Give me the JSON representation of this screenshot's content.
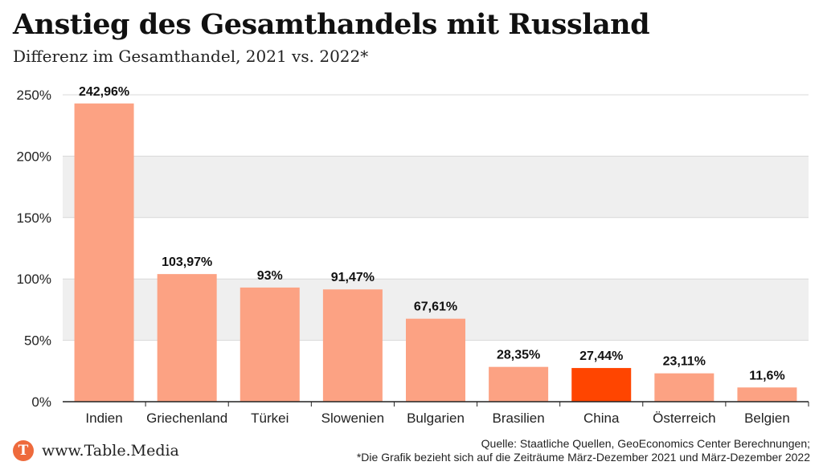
{
  "header": {
    "title": "Anstieg des Gesamthandels mit Russland",
    "subtitle": "Differenz im Gesamthandel, 2021 vs. 2022*"
  },
  "chart_data": {
    "type": "bar",
    "title": "Anstieg des Gesamthandels mit Russland",
    "subtitle": "Differenz im Gesamthandel, 2021 vs. 2022*",
    "xlabel": "",
    "ylabel": "",
    "ylim": [
      0,
      250
    ],
    "yticks": [
      0,
      50,
      100,
      150,
      200,
      250
    ],
    "ytick_labels": [
      "0%",
      "50%",
      "100%",
      "150%",
      "200%",
      "250%"
    ],
    "grid": "alternating horizontal bands",
    "legend": "none",
    "categories": [
      "Indien",
      "Griechenland",
      "Türkei",
      "Slowenien",
      "Bulgarien",
      "Brasilien",
      "China",
      "Österreich",
      "Belgien"
    ],
    "values": [
      242.96,
      103.97,
      93,
      91.47,
      67.61,
      28.35,
      27.44,
      23.11,
      11.6
    ],
    "value_labels": [
      "242,96%",
      "103,97%",
      "93%",
      "91,47%",
      "67,61%",
      "28,35%",
      "27,44%",
      "23,11%",
      "11,6%"
    ],
    "highlight_category": "China",
    "colors": {
      "bar": "#fca283",
      "highlight": "#ff4500",
      "band": "#efefef",
      "axis": "#222222"
    }
  },
  "footer": {
    "logo_letter": "T",
    "site": "www.Table.Media",
    "source_line1": "Quelle: Staatliche Quellen, GeoEconomics Center Berechnungen;",
    "source_line2": "*Die Grafik bezieht sich auf die Zeiträume März-Dezember 2021 und März-Dezember 2022"
  }
}
